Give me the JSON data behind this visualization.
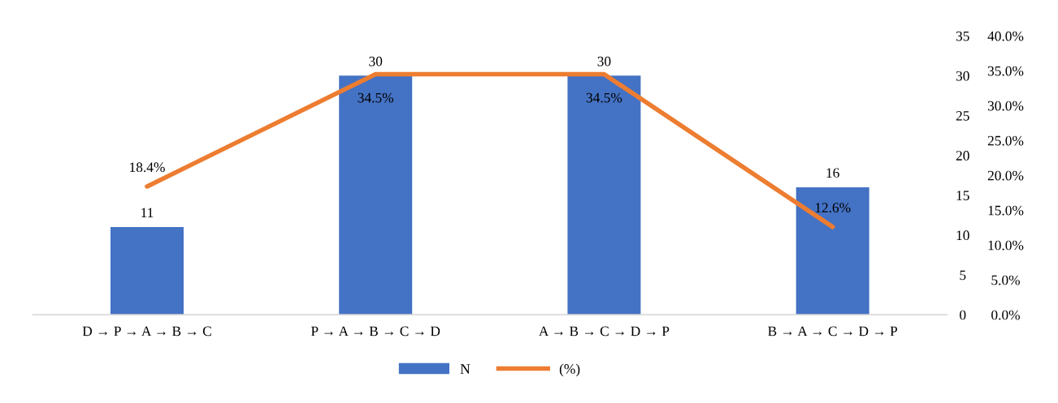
{
  "chart_data": {
    "type": "bar",
    "categories": [
      "D → P → A → B → C",
      "P → A → B → C → D",
      "A → B → C → D → P",
      "B → A → C → D → P"
    ],
    "series": [
      {
        "name": "N",
        "color": "#4472c4",
        "values": [
          11,
          30,
          30,
          16
        ],
        "value_labels": [
          "11",
          "30",
          "30",
          "16"
        ]
      },
      {
        "name": "(%)",
        "type": "line",
        "axis": "y2",
        "color": "#ed7d31",
        "values": [
          18.4,
          34.5,
          34.5,
          12.6
        ],
        "value_labels": [
          "18.4%",
          "34.5%",
          "34.5%",
          "12.6%"
        ]
      }
    ],
    "ylim": [
      0,
      35
    ],
    "yticks": [
      0,
      5,
      10,
      15,
      20,
      25,
      30,
      35
    ],
    "y2lim": [
      0,
      40
    ],
    "y2ticks": [
      {
        "value": 0,
        "label": "0.0%"
      },
      {
        "value": 5,
        "label": "5.0%"
      },
      {
        "value": 10,
        "label": "10.0%"
      },
      {
        "value": 15,
        "label": "15.0%"
      },
      {
        "value": 20,
        "label": "20.0%"
      },
      {
        "value": 25,
        "label": "25.0%"
      },
      {
        "value": 30,
        "label": "30.0%"
      },
      {
        "value": 35,
        "label": "35.0%"
      },
      {
        "value": 40,
        "label": "40.0%"
      }
    ],
    "grid": false,
    "legend": "bottom"
  }
}
